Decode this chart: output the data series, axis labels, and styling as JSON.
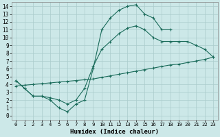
{
  "xlabel": "Humidex (Indice chaleur)",
  "bg_color": "#cce8e8",
  "grid_color": "#aacccc",
  "line_color": "#1a6b5a",
  "xlim": [
    -0.5,
    23.5
  ],
  "ylim": [
    -0.5,
    14.5
  ],
  "xticks": [
    0,
    1,
    2,
    3,
    4,
    5,
    6,
    7,
    8,
    9,
    10,
    11,
    12,
    13,
    14,
    15,
    16,
    17,
    18,
    19,
    20,
    21,
    22,
    23
  ],
  "yticks": [
    0,
    1,
    2,
    3,
    4,
    5,
    6,
    7,
    8,
    9,
    10,
    11,
    12,
    13,
    14
  ],
  "curve1_x": [
    0,
    1,
    2,
    3,
    4,
    5,
    6,
    7,
    8,
    9,
    10,
    11,
    12,
    13,
    14,
    15,
    16,
    17,
    18
  ],
  "curve1_y": [
    4.5,
    3.5,
    2.5,
    2.5,
    2.0,
    1.0,
    0.5,
    1.5,
    2.0,
    6.0,
    11.0,
    12.5,
    13.5,
    14.0,
    14.2,
    13.0,
    12.5,
    11.0,
    11.0
  ],
  "curve2_x": [
    0,
    1,
    2,
    3,
    4,
    5,
    6,
    7,
    8,
    9,
    10,
    11,
    12,
    13,
    14,
    15,
    16,
    17,
    18,
    19,
    20,
    21,
    22,
    23
  ],
  "curve2_y": [
    4.5,
    3.5,
    2.5,
    2.5,
    2.3,
    2.0,
    1.5,
    2.0,
    3.5,
    6.3,
    8.5,
    9.5,
    10.5,
    11.2,
    11.5,
    11.0,
    10.0,
    9.5,
    9.5,
    9.5,
    9.5,
    9.0,
    8.5,
    7.5
  ],
  "curve3_x": [
    0,
    1,
    2,
    3,
    4,
    5,
    6,
    7,
    8,
    9,
    10,
    11,
    12,
    13,
    14,
    15,
    16,
    17,
    18,
    19,
    20,
    21,
    22,
    23
  ],
  "curve3_y": [
    3.8,
    3.9,
    4.0,
    4.1,
    4.2,
    4.3,
    4.4,
    4.5,
    4.6,
    4.7,
    4.9,
    5.1,
    5.3,
    5.5,
    5.7,
    5.9,
    6.1,
    6.3,
    6.5,
    6.6,
    6.8,
    7.0,
    7.2,
    7.5
  ],
  "marker": "+",
  "markersize": 3,
  "linewidth": 0.8
}
